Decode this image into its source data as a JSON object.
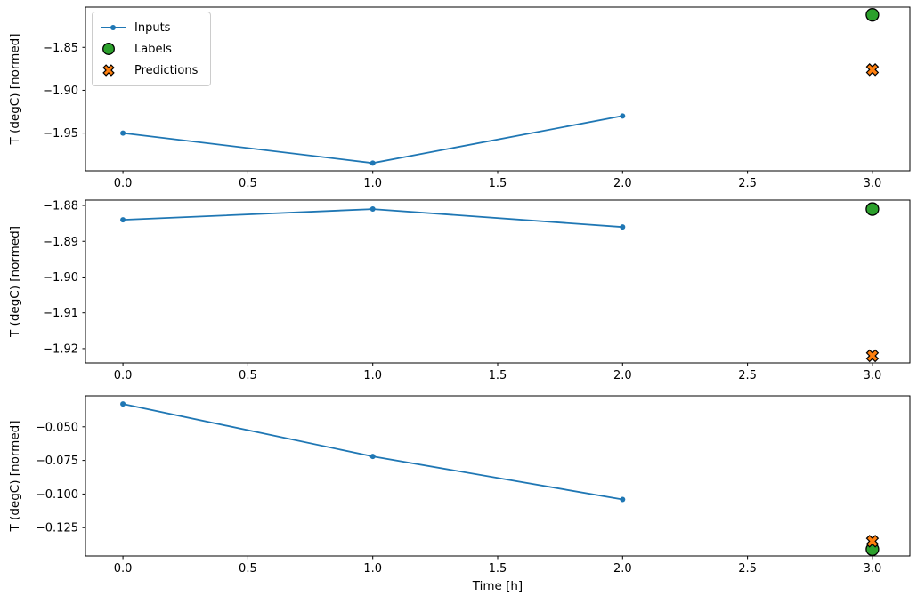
{
  "figure": {
    "xlabel": "Time [h]",
    "background": "#ffffff",
    "text_color": "#000000"
  },
  "legend": {
    "position": "upper-left-of-first-subplot",
    "items": [
      {
        "label": "Inputs",
        "marker": "line-dot",
        "color": "#1f77b4"
      },
      {
        "label": "Labels",
        "marker": "circle",
        "color": "#2ca02c",
        "edge": "#000000"
      },
      {
        "label": "Predictions",
        "marker": "x",
        "color": "#ff7f0e",
        "edge": "#000000"
      }
    ]
  },
  "chart_data": [
    {
      "type": "line",
      "title": "",
      "xlabel": "",
      "ylabel": "T (degC) [normed]",
      "grid": false,
      "xlim": [
        -0.15,
        3.15
      ],
      "ylim": [
        -1.994,
        -1.803
      ],
      "x_ticks": [
        {
          "value": 0.0,
          "label": "0.0"
        },
        {
          "value": 0.5,
          "label": "0.5"
        },
        {
          "value": 1.0,
          "label": "1.0"
        },
        {
          "value": 1.5,
          "label": "1.5"
        },
        {
          "value": 2.0,
          "label": "2.0"
        },
        {
          "value": 2.5,
          "label": "2.5"
        },
        {
          "value": 3.0,
          "label": "3.0"
        }
      ],
      "y_ticks": [
        {
          "value": -1.85,
          "label": "−1.85"
        },
        {
          "value": -1.9,
          "label": "−1.90"
        },
        {
          "value": -1.95,
          "label": "−1.95"
        }
      ],
      "series": [
        {
          "name": "Inputs",
          "type": "line",
          "color": "#1f77b4",
          "marker": "dot",
          "x": [
            0,
            1,
            2
          ],
          "y": [
            -1.95,
            -1.985,
            -1.93
          ]
        },
        {
          "name": "Labels",
          "type": "scatter",
          "color": "#2ca02c",
          "edge": "#000000",
          "marker": "circle",
          "x": [
            3
          ],
          "y": [
            -1.812
          ]
        },
        {
          "name": "Predictions",
          "type": "scatter",
          "color": "#ff7f0e",
          "edge": "#000000",
          "marker": "x",
          "x": [
            3
          ],
          "y": [
            -1.876
          ]
        }
      ]
    },
    {
      "type": "line",
      "title": "",
      "xlabel": "",
      "ylabel": "T (degC) [normed]",
      "grid": false,
      "xlim": [
        -0.15,
        3.15
      ],
      "ylim": [
        -1.924,
        -1.8785
      ],
      "x_ticks": [
        {
          "value": 0.0,
          "label": "0.0"
        },
        {
          "value": 0.5,
          "label": "0.5"
        },
        {
          "value": 1.0,
          "label": "1.0"
        },
        {
          "value": 1.5,
          "label": "1.5"
        },
        {
          "value": 2.0,
          "label": "2.0"
        },
        {
          "value": 2.5,
          "label": "2.5"
        },
        {
          "value": 3.0,
          "label": "3.0"
        }
      ],
      "y_ticks": [
        {
          "value": -1.88,
          "label": "−1.88"
        },
        {
          "value": -1.89,
          "label": "−1.89"
        },
        {
          "value": -1.9,
          "label": "−1.90"
        },
        {
          "value": -1.91,
          "label": "−1.91"
        },
        {
          "value": -1.92,
          "label": "−1.92"
        }
      ],
      "series": [
        {
          "name": "Inputs",
          "type": "line",
          "color": "#1f77b4",
          "marker": "dot",
          "x": [
            0,
            1,
            2
          ],
          "y": [
            -1.884,
            -1.881,
            -1.886
          ]
        },
        {
          "name": "Labels",
          "type": "scatter",
          "color": "#2ca02c",
          "edge": "#000000",
          "marker": "circle",
          "x": [
            3
          ],
          "y": [
            -1.881
          ]
        },
        {
          "name": "Predictions",
          "type": "scatter",
          "color": "#ff7f0e",
          "edge": "#000000",
          "marker": "x",
          "x": [
            3
          ],
          "y": [
            -1.922
          ]
        }
      ]
    },
    {
      "type": "line",
      "title": "",
      "xlabel": "Time [h]",
      "ylabel": "T (degC) [normed]",
      "grid": false,
      "xlim": [
        -0.15,
        3.15
      ],
      "ylim": [
        -0.146,
        -0.027
      ],
      "x_ticks": [
        {
          "value": 0.0,
          "label": "0.0"
        },
        {
          "value": 0.5,
          "label": "0.5"
        },
        {
          "value": 1.0,
          "label": "1.0"
        },
        {
          "value": 1.5,
          "label": "1.5"
        },
        {
          "value": 2.0,
          "label": "2.0"
        },
        {
          "value": 2.5,
          "label": "2.5"
        },
        {
          "value": 3.0,
          "label": "3.0"
        }
      ],
      "y_ticks": [
        {
          "value": -0.05,
          "label": "−0.050"
        },
        {
          "value": -0.075,
          "label": "−0.075"
        },
        {
          "value": -0.1,
          "label": "−0.100"
        },
        {
          "value": -0.125,
          "label": "−0.125"
        }
      ],
      "series": [
        {
          "name": "Inputs",
          "type": "line",
          "color": "#1f77b4",
          "marker": "dot",
          "x": [
            0,
            1,
            2
          ],
          "y": [
            -0.033,
            -0.072,
            -0.104
          ]
        },
        {
          "name": "Labels",
          "type": "scatter",
          "color": "#2ca02c",
          "edge": "#000000",
          "marker": "circle",
          "x": [
            3
          ],
          "y": [
            -0.141
          ]
        },
        {
          "name": "Predictions",
          "type": "scatter",
          "color": "#ff7f0e",
          "edge": "#000000",
          "marker": "x",
          "x": [
            3
          ],
          "y": [
            -0.135
          ]
        }
      ]
    }
  ]
}
